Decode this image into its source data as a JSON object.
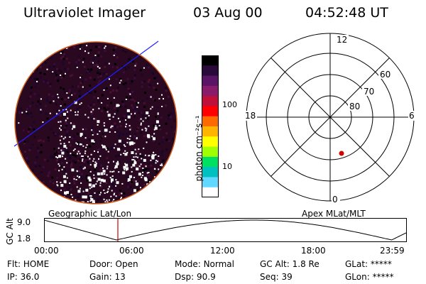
{
  "header": {
    "title": "Ultraviolet Imager",
    "date": "03 Aug 00",
    "time": "04:52:48 UT"
  },
  "colorbar": {
    "unit_label": "photon cm⁻²s⁻¹",
    "ticks": [
      "100",
      "10"
    ],
    "colors": [
      "#000000",
      "#2a0a3a",
      "#5a1466",
      "#8a1a6a",
      "#c0103a",
      "#ff0000",
      "#ff6a00",
      "#ffb400",
      "#ffff00",
      "#a0ff00",
      "#00e060",
      "#00c0c0",
      "#60d8ff",
      "#ffffff"
    ]
  },
  "polar_plot": {
    "hour_labels": [
      "12",
      "18",
      "6",
      "0"
    ],
    "lat_labels": [
      "60",
      "70",
      "80"
    ],
    "marker_color": "#cc0000"
  },
  "timeline": {
    "left_title": "Geographic Lat/Lon",
    "right_title": "Apex MLat/MLT",
    "axis_label": "GC Alt",
    "y_ticks": [
      "9.0",
      "1.8"
    ],
    "x_ticks": [
      "00:00",
      "06:00",
      "12:00",
      "18:00",
      "23:59"
    ],
    "cursor_color": "#cc0000"
  },
  "status": {
    "row1": [
      {
        "label": "Flt:",
        "value": "HOME"
      },
      {
        "label": "Door:",
        "value": "Open"
      },
      {
        "label": "Mode:",
        "value": "Normal"
      },
      {
        "label": "GC Alt:",
        "value": "1.8 Re"
      },
      {
        "label": "GLat:",
        "value": "*****"
      }
    ],
    "row2": [
      {
        "label": "IP:",
        "value": "36.0"
      },
      {
        "label": "Gain:",
        "value": "13"
      },
      {
        "label": "Dsp:",
        "value": "90.9"
      },
      {
        "label": "Seq:",
        "value": "39"
      },
      {
        "label": "GLon:",
        "value": "*****"
      }
    ]
  },
  "image_colors": {
    "disk_background": "#2a0820",
    "disk_edge": "#d06020",
    "track_line": "#2020ff"
  }
}
